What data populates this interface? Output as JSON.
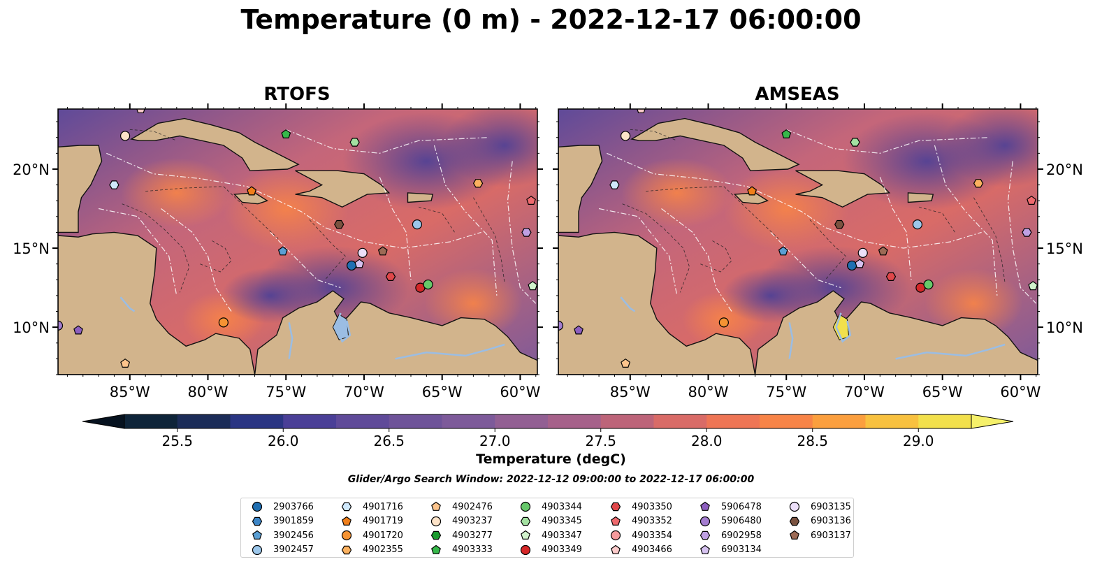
{
  "figure": {
    "title": "Temperature (0 m) - 2022-12-17 06:00:00",
    "colorbar_label": "Temperature (degC)",
    "search_window": "Glider/Argo Search Window: 2022-12-12 09:00:00 to 2022-12-17 06:00:00"
  },
  "maps": [
    {
      "title": "RTOFS",
      "side": "left"
    },
    {
      "title": "AMSEAS",
      "side": "right"
    }
  ],
  "axes": {
    "lon_ticks": [
      "85°W",
      "80°W",
      "75°W",
      "70°W",
      "65°W",
      "60°W"
    ],
    "lon_values": [
      -85,
      -80,
      -75,
      -70,
      -65,
      -60
    ],
    "lat_ticks": [
      "20°N",
      "15°N",
      "10°N"
    ],
    "lat_values": [
      20,
      15,
      10
    ],
    "extent": {
      "lon_min": -89.6,
      "lon_max": -58.9,
      "lat_min": 7.0,
      "lat_max": 23.8
    }
  },
  "colorbar": {
    "min": 25.25,
    "max": 29.25,
    "step": 0.25,
    "ticks": [
      "25.5",
      "26.0",
      "26.5",
      "27.0",
      "27.5",
      "28.0",
      "28.5",
      "29.0"
    ],
    "tick_values": [
      25.5,
      26.0,
      26.5,
      27.0,
      27.5,
      28.0,
      28.5,
      29.0
    ],
    "colors": [
      "#0e2439",
      "#1b2c58",
      "#2a3583",
      "#4a3f97",
      "#5f4a99",
      "#6e5399",
      "#7d5a9a",
      "#925f93",
      "#a6618a",
      "#bd6479",
      "#d96b67",
      "#ee7555",
      "#f88447",
      "#fb9f3e",
      "#f8c13f",
      "#f2e04c"
    ]
  },
  "legend": [
    {
      "id": "2903766",
      "marker": "circle",
      "color": "#1f6fb2"
    },
    {
      "id": "3901859",
      "marker": "hexagon",
      "color": "#3d85c6"
    },
    {
      "id": "3902456",
      "marker": "pentagon",
      "color": "#5a9fd4"
    },
    {
      "id": "3902457",
      "marker": "circle",
      "color": "#9cc7eb"
    },
    {
      "id": "4901716",
      "marker": "hexagon",
      "color": "#cfe8fb"
    },
    {
      "id": "4901719",
      "marker": "pentagon",
      "color": "#f07f1a"
    },
    {
      "id": "4901720",
      "marker": "circle",
      "color": "#f59333"
    },
    {
      "id": "4902355",
      "marker": "hexagon",
      "color": "#fbb15f"
    },
    {
      "id": "4902476",
      "marker": "pentagon",
      "color": "#fcc48c"
    },
    {
      "id": "4903237",
      "marker": "circle",
      "color": "#fde3c8"
    },
    {
      "id": "4903277",
      "marker": "hexagon",
      "color": "#1a9b2e"
    },
    {
      "id": "4903333",
      "marker": "pentagon",
      "color": "#36b84a"
    },
    {
      "id": "4903344",
      "marker": "circle",
      "color": "#66c86a"
    },
    {
      "id": "4903345",
      "marker": "hexagon",
      "color": "#a3e0a1"
    },
    {
      "id": "4903347",
      "marker": "pentagon",
      "color": "#d1f2cc"
    },
    {
      "id": "4903349",
      "marker": "circle",
      "color": "#d62728"
    },
    {
      "id": "4903350",
      "marker": "hexagon",
      "color": "#e0474a"
    },
    {
      "id": "4903352",
      "marker": "pentagon",
      "color": "#ee6a6e"
    },
    {
      "id": "4903354",
      "marker": "circle",
      "color": "#f59a9c"
    },
    {
      "id": "4903466",
      "marker": "pentagon",
      "color": "#fbcaca"
    },
    {
      "id": "5906478",
      "marker": "pentagon",
      "color": "#8d5fbf"
    },
    {
      "id": "5906480",
      "marker": "circle",
      "color": "#a47dd0"
    },
    {
      "id": "6902958",
      "marker": "hexagon",
      "color": "#bfa0e3"
    },
    {
      "id": "6903134",
      "marker": "pentagon",
      "color": "#d6c2f0"
    },
    {
      "id": "6903135",
      "marker": "circle",
      "color": "#ecdff9"
    },
    {
      "id": "6903136",
      "marker": "hexagon",
      "color": "#7a5240"
    },
    {
      "id": "6903137",
      "marker": "pentagon",
      "color": "#9c6a55"
    }
  ],
  "platforms": [
    {
      "id": "4903237",
      "lon": -85.3,
      "lat": 22.1
    },
    {
      "id": "4901716",
      "lon": -86.0,
      "lat": 19.0
    },
    {
      "id": "4903333",
      "lon": -75.0,
      "lat": 22.2
    },
    {
      "id": "4903345",
      "lon": -70.6,
      "lat": 21.7
    },
    {
      "id": "4901719",
      "lon": -77.2,
      "lat": 18.6
    },
    {
      "id": "4902355",
      "lon": -62.7,
      "lat": 19.1
    },
    {
      "id": "4903352",
      "lon": -59.3,
      "lat": 18.0
    },
    {
      "id": "6903136",
      "lon": -71.6,
      "lat": 16.5
    },
    {
      "id": "3902457",
      "lon": -66.6,
      "lat": 16.5
    },
    {
      "id": "6902958",
      "lon": -59.6,
      "lat": 16.0
    },
    {
      "id": "4903347",
      "lon": -59.2,
      "lat": 12.6
    },
    {
      "id": "3902456",
      "lon": -75.2,
      "lat": 14.8
    },
    {
      "id": "6903135",
      "lon": -70.1,
      "lat": 14.7
    },
    {
      "id": "6903137",
      "lon": -68.8,
      "lat": 14.8
    },
    {
      "id": "2903766",
      "lon": -70.8,
      "lat": 13.9
    },
    {
      "id": "6903134",
      "lon": -70.3,
      "lat": 14.0
    },
    {
      "id": "4903350",
      "lon": -68.3,
      "lat": 13.2
    },
    {
      "id": "4903349",
      "lon": -66.4,
      "lat": 12.5
    },
    {
      "id": "4903344",
      "lon": -65.9,
      "lat": 12.7
    },
    {
      "id": "4901720",
      "lon": -79.0,
      "lat": 10.3
    },
    {
      "id": "5906480",
      "lon": -89.6,
      "lat": 10.1
    },
    {
      "id": "5906478",
      "lon": -88.3,
      "lat": 9.8
    },
    {
      "id": "4902476",
      "lon": -85.3,
      "lat": 7.7
    },
    {
      "id": "4903466",
      "lon": -84.3,
      "lat": 23.8
    }
  ]
}
